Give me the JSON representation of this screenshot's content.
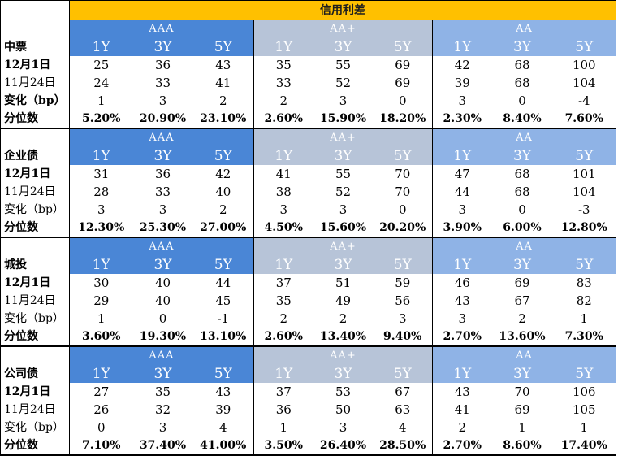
{
  "title": "信用利差",
  "groups": [
    "AAA",
    "AA+",
    "AA"
  ],
  "tenors": [
    "1Y",
    "3Y",
    "5Y"
  ],
  "sections": [
    {
      "name": "中票",
      "rows": [
        {
          "label": "12月1日",
          "style": "bold",
          "values": [
            "25",
            "36",
            "43",
            "35",
            "55",
            "69",
            "42",
            "68",
            "100"
          ]
        },
        {
          "label": "11月24日",
          "style": "light",
          "values": [
            "24",
            "33",
            "41",
            "33",
            "52",
            "69",
            "39",
            "68",
            "104"
          ]
        },
        {
          "label": "变化（bp）",
          "style": "bold",
          "values": [
            "1",
            "3",
            "2",
            "2",
            "3",
            "0",
            "3",
            "0",
            "-4"
          ]
        },
        {
          "label": "分位数",
          "style": "pct",
          "values": [
            "5.20%",
            "20.90%",
            "23.10%",
            "2.60%",
            "15.90%",
            "18.20%",
            "2.30%",
            "8.40%",
            "7.60%"
          ]
        }
      ]
    },
    {
      "name": "企业债",
      "rows": [
        {
          "label": "12月1日",
          "style": "bold",
          "values": [
            "31",
            "36",
            "42",
            "41",
            "55",
            "70",
            "47",
            "68",
            "101"
          ]
        },
        {
          "label": "11月24日",
          "style": "light",
          "values": [
            "28",
            "33",
            "40",
            "38",
            "52",
            "70",
            "44",
            "68",
            "104"
          ]
        },
        {
          "label": "变化（bp）",
          "style": "light",
          "values": [
            "3",
            "3",
            "2",
            "3",
            "3",
            "0",
            "3",
            "0",
            "-3"
          ]
        },
        {
          "label": "分位数",
          "style": "pct",
          "values": [
            "12.30%",
            "25.30%",
            "27.00%",
            "4.50%",
            "15.60%",
            "20.20%",
            "3.90%",
            "6.00%",
            "12.80%"
          ]
        }
      ]
    },
    {
      "name": "城投",
      "rows": [
        {
          "label": "12月1日",
          "style": "bold",
          "values": [
            "30",
            "40",
            "44",
            "37",
            "51",
            "59",
            "46",
            "69",
            "83"
          ]
        },
        {
          "label": "11月24日",
          "style": "light",
          "values": [
            "29",
            "40",
            "45",
            "35",
            "49",
            "56",
            "43",
            "67",
            "82"
          ]
        },
        {
          "label": "变化（bp）",
          "style": "light",
          "values": [
            "1",
            "0",
            "-1",
            "2",
            "2",
            "3",
            "3",
            "2",
            "1"
          ]
        },
        {
          "label": "分位数",
          "style": "pct",
          "values": [
            "3.60%",
            "19.30%",
            "13.10%",
            "2.60%",
            "13.40%",
            "9.40%",
            "2.70%",
            "13.60%",
            "7.30%"
          ]
        }
      ]
    },
    {
      "name": "公司债",
      "rows": [
        {
          "label": "12月1日",
          "style": "bold",
          "values": [
            "27",
            "35",
            "43",
            "37",
            "53",
            "67",
            "43",
            "70",
            "106"
          ]
        },
        {
          "label": "11月24日",
          "style": "light",
          "values": [
            "26",
            "32",
            "39",
            "36",
            "50",
            "63",
            "41",
            "69",
            "105"
          ]
        },
        {
          "label": "变化（bp）",
          "style": "light",
          "values": [
            "0",
            "3",
            "4",
            "1",
            "3",
            "4",
            "2",
            "1",
            "1"
          ]
        },
        {
          "label": "分位数",
          "style": "pct",
          "values": [
            "7.10%",
            "37.40%",
            "41.00%",
            "3.50%",
            "26.40%",
            "28.50%",
            "2.70%",
            "8.60%",
            "17.40%"
          ]
        }
      ]
    }
  ]
}
